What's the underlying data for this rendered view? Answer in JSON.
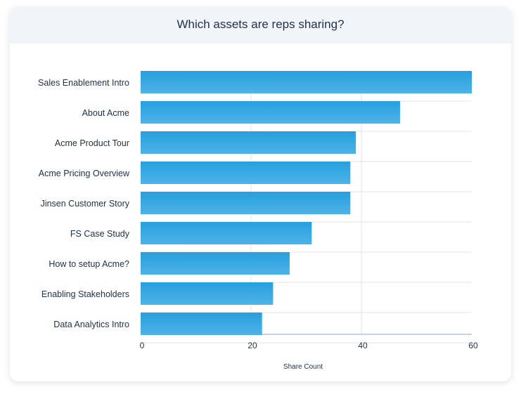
{
  "chart_data": {
    "type": "bar",
    "orientation": "horizontal",
    "title": "Which assets are reps sharing?",
    "xlabel": "Share Count",
    "ylabel": "",
    "categories": [
      "Sales Enablement Intro",
      "About Acme",
      "Acme Product Tour",
      "Acme Pricing Overview",
      "Jinsen Customer Story",
      "FS Case Study",
      "How to setup Acme?",
      "Enabling Stakeholders",
      "Data Analytics Intro"
    ],
    "values": [
      60,
      47,
      39,
      38,
      38,
      31,
      27,
      24,
      22
    ],
    "xlim": [
      0,
      60
    ],
    "xticks": [
      "0",
      "20",
      "40",
      "60"
    ],
    "grid": true,
    "bar_color": "#2b9fe0"
  }
}
